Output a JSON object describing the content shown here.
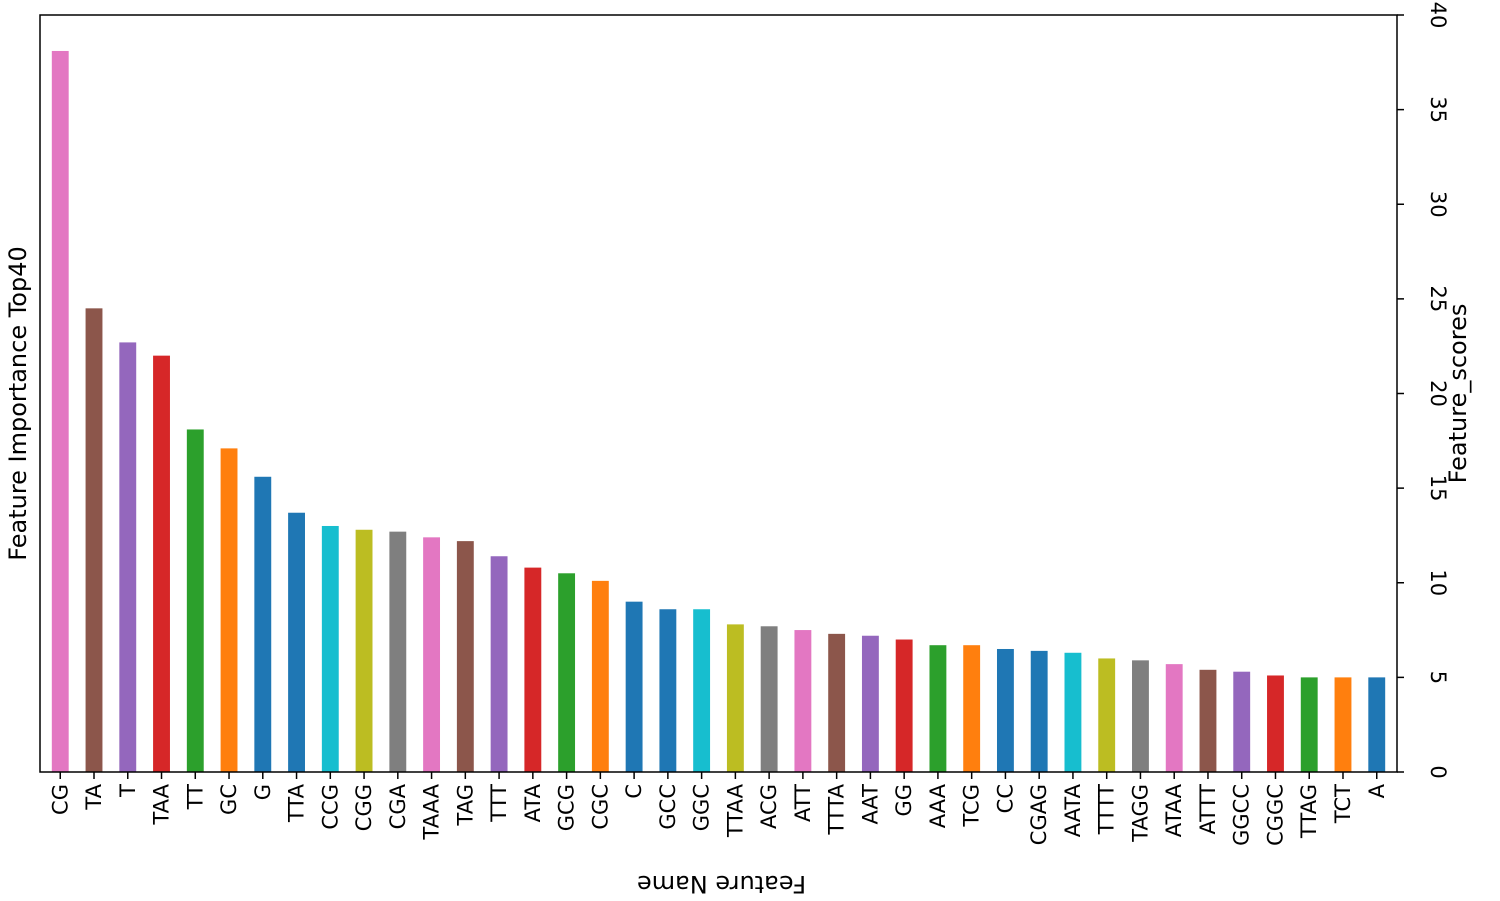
{
  "chart_data": {
    "type": "bar",
    "title": "Feature Importance Top40",
    "xlabel": "Feature Name",
    "ylabel": "Feature_scores",
    "y_axis_side": "right",
    "ylim": [
      0,
      40
    ],
    "yticks": [
      0,
      5,
      10,
      15,
      20,
      25,
      30,
      35,
      40
    ],
    "x_tick_rotation": "vertical",
    "xlabel_orientation": "upside-down",
    "grid": false,
    "legend": false,
    "categories": [
      "CG",
      "TA",
      "T",
      "TAA",
      "TT",
      "GC",
      "G",
      "TTA",
      "CCG",
      "CGG",
      "CGA",
      "TAAA",
      "TAG",
      "TTT",
      "ATA",
      "GCG",
      "CGC",
      "C",
      "GCC",
      "GGC",
      "TTAA",
      "ACG",
      "ATT",
      "TTTA",
      "AAT",
      "GG",
      "AAA",
      "TCG",
      "CC",
      "CGAG",
      "AATA",
      "TTTT",
      "TAGG",
      "ATAA",
      "ATTT",
      "GGCC",
      "CGGC",
      "TTAG",
      "TCT",
      "A"
    ],
    "values": [
      38.1,
      24.5,
      22.7,
      22.0,
      18.1,
      17.1,
      15.6,
      13.7,
      13.0,
      12.8,
      12.7,
      12.4,
      12.2,
      11.4,
      10.8,
      10.5,
      10.1,
      9.0,
      8.6,
      8.6,
      7.8,
      7.7,
      7.5,
      7.3,
      7.2,
      7.0,
      6.7,
      6.7,
      6.5,
      6.4,
      6.3,
      6.0,
      5.9,
      5.7,
      5.4,
      5.3,
      5.1,
      5.0,
      5.0,
      5.0
    ],
    "bar_colors": [
      "#e377c2",
      "#8c564b",
      "#9467bd",
      "#d62728",
      "#2ca02c",
      "#ff7f0e",
      "#1f77b4",
      "#1f77b4",
      "#17becf",
      "#bcbd22",
      "#7f7f7f",
      "#e377c2",
      "#8c564b",
      "#9467bd",
      "#d62728",
      "#2ca02c",
      "#ff7f0e",
      "#1f77b4",
      "#1f77b4",
      "#17becf",
      "#bcbd22",
      "#7f7f7f",
      "#e377c2",
      "#8c564b",
      "#9467bd",
      "#d62728",
      "#2ca02c",
      "#ff7f0e",
      "#1f77b4",
      "#1f77b4",
      "#17becf",
      "#bcbd22",
      "#7f7f7f",
      "#e377c2",
      "#8c564b",
      "#9467bd",
      "#d62728",
      "#2ca02c",
      "#ff7f0e",
      "#1f77b4"
    ]
  }
}
